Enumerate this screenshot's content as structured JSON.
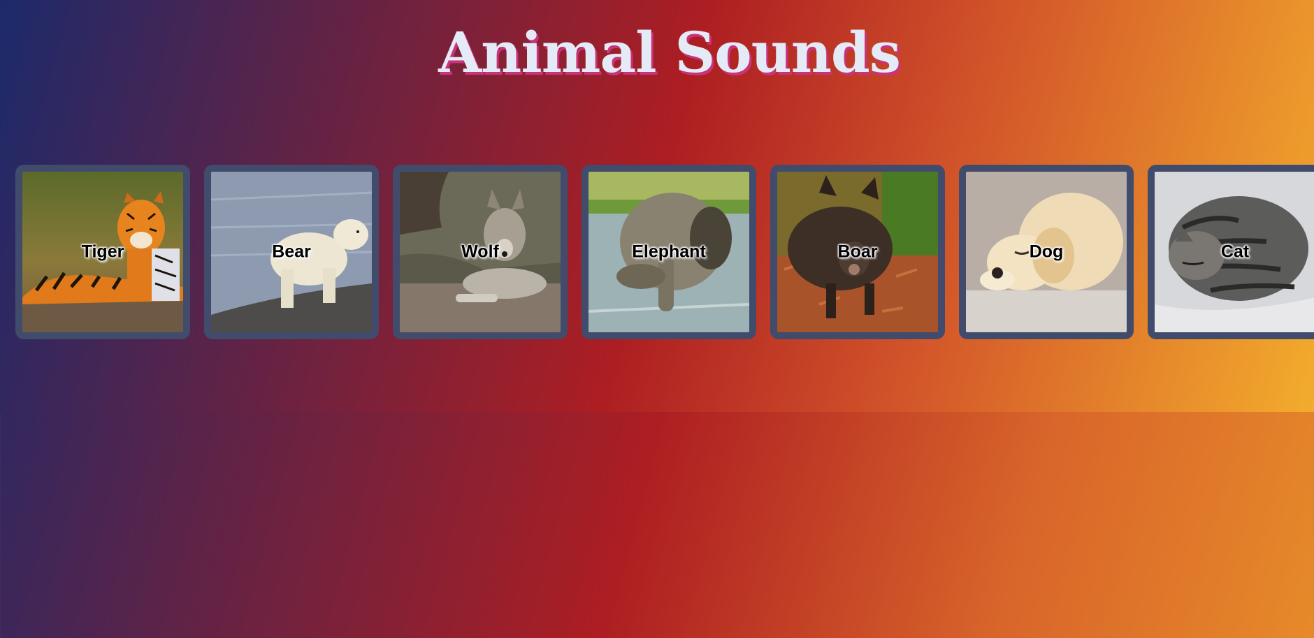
{
  "page": {
    "title": "Animal Sounds",
    "colors": {
      "title_text": "#e4eaf6",
      "title_shadow": "#c8347c",
      "card_border": "#414c6c",
      "gradient_start": "#1c2a6b",
      "gradient_mid": "#ad1e22",
      "gradient_end": "#f3ac2c"
    }
  },
  "animals": [
    {
      "name": "Tiger",
      "icon": "tiger-photo"
    },
    {
      "name": "Bear",
      "icon": "polar-bear-photo"
    },
    {
      "name": "Wolf",
      "icon": "wolf-photo"
    },
    {
      "name": "Elephant",
      "icon": "elephant-photo"
    },
    {
      "name": "Boar",
      "icon": "boar-photo"
    },
    {
      "name": "Dog",
      "icon": "puppy-photo"
    },
    {
      "name": "Cat",
      "icon": "cat-photo"
    }
  ]
}
